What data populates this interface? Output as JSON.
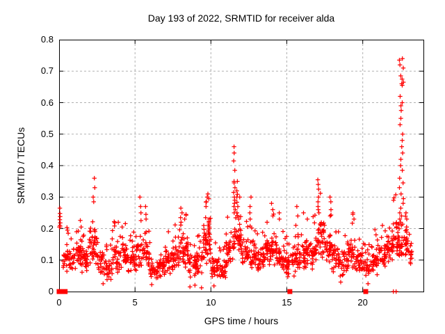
{
  "chart_data": {
    "type": "scatter",
    "title": "Day 193 of 2022, SRMTID for receiver alda",
    "xlabel": "GPS time / hours",
    "ylabel": "SRMTID / TECUs",
    "xlim": [
      0,
      24
    ],
    "ylim": [
      0,
      0.8
    ],
    "xticks": [
      0,
      5,
      10,
      15,
      20
    ],
    "xtick_labels": [
      "0",
      "5",
      "10",
      "15",
      "20"
    ],
    "yticks": [
      0,
      0.1,
      0.2,
      0.3,
      0.4,
      0.5,
      0.6,
      0.7,
      0.8
    ],
    "ytick_labels": [
      "0",
      "0.1",
      "0.2",
      "0.3",
      "0.4",
      "0.5",
      "0.6",
      "0.7",
      "0.8"
    ],
    "grid": true,
    "grid_style": "dashed",
    "grid_color": "#b0b0b0",
    "legend": "none",
    "marker": "plus",
    "marker_color": "#ff0000",
    "gap_marker": "filled-square",
    "seed": 20220193,
    "band_profile": [
      [
        0.25,
        0.5,
        14,
        0.06,
        0.13
      ],
      [
        0.5,
        1.0,
        30,
        0.05,
        0.16
      ],
      [
        1.0,
        1.5,
        32,
        0.06,
        0.18
      ],
      [
        1.5,
        2.0,
        30,
        0.05,
        0.15
      ],
      [
        2.0,
        2.5,
        36,
        0.07,
        0.23
      ],
      [
        2.5,
        3.0,
        30,
        0.05,
        0.14
      ],
      [
        3.0,
        3.5,
        28,
        0.03,
        0.11
      ],
      [
        3.5,
        4.0,
        32,
        0.05,
        0.17
      ],
      [
        4.0,
        4.5,
        32,
        0.06,
        0.18
      ],
      [
        4.5,
        5.0,
        30,
        0.05,
        0.15
      ],
      [
        5.0,
        5.5,
        30,
        0.06,
        0.19
      ],
      [
        5.5,
        6.0,
        30,
        0.05,
        0.17
      ],
      [
        6.0,
        6.5,
        27,
        0.03,
        0.1
      ],
      [
        6.5,
        7.0,
        28,
        0.04,
        0.12
      ],
      [
        7.0,
        7.5,
        30,
        0.05,
        0.15
      ],
      [
        7.5,
        8.0,
        32,
        0.06,
        0.17
      ],
      [
        8.0,
        8.5,
        34,
        0.07,
        0.2
      ],
      [
        8.5,
        9.0,
        30,
        0.04,
        0.13
      ],
      [
        9.0,
        9.5,
        30,
        0.05,
        0.14
      ],
      [
        9.5,
        10.0,
        40,
        0.08,
        0.23
      ],
      [
        10.0,
        10.5,
        30,
        0.04,
        0.12
      ],
      [
        10.5,
        11.0,
        28,
        0.03,
        0.11
      ],
      [
        11.0,
        11.5,
        34,
        0.07,
        0.2
      ],
      [
        11.5,
        12.0,
        40,
        0.1,
        0.28
      ],
      [
        12.0,
        12.5,
        32,
        0.06,
        0.18
      ],
      [
        12.5,
        13.0,
        32,
        0.06,
        0.17
      ],
      [
        13.0,
        13.5,
        30,
        0.05,
        0.15
      ],
      [
        13.5,
        14.0,
        32,
        0.07,
        0.19
      ],
      [
        14.0,
        14.5,
        34,
        0.07,
        0.2
      ],
      [
        14.5,
        15.0,
        30,
        0.05,
        0.15
      ],
      [
        15.0,
        15.5,
        28,
        0.04,
        0.13
      ],
      [
        15.5,
        16.0,
        32,
        0.06,
        0.17
      ],
      [
        16.0,
        16.5,
        32,
        0.06,
        0.18
      ],
      [
        16.5,
        17.0,
        34,
        0.07,
        0.19
      ],
      [
        17.0,
        17.5,
        36,
        0.09,
        0.25
      ],
      [
        17.5,
        18.0,
        32,
        0.06,
        0.2
      ],
      [
        18.0,
        18.5,
        30,
        0.05,
        0.15
      ],
      [
        18.5,
        19.0,
        30,
        0.04,
        0.14
      ],
      [
        19.0,
        19.5,
        32,
        0.06,
        0.18
      ],
      [
        19.5,
        20.0,
        30,
        0.05,
        0.16
      ],
      [
        20.0,
        20.5,
        28,
        0.04,
        0.13
      ],
      [
        20.5,
        21.0,
        30,
        0.05,
        0.16
      ],
      [
        21.0,
        21.5,
        32,
        0.07,
        0.17
      ],
      [
        21.5,
        22.0,
        34,
        0.08,
        0.19
      ],
      [
        22.0,
        22.5,
        36,
        0.1,
        0.24
      ],
      [
        22.5,
        23.0,
        34,
        0.09,
        0.21
      ],
      [
        23.0,
        23.25,
        14,
        0.08,
        0.16
      ]
    ],
    "spikes": [
      {
        "x": 2.3,
        "ys": [
          0.36,
          0.33,
          0.3,
          0.285
        ]
      },
      {
        "x": 5.35,
        "ys": [
          0.3,
          0.27,
          0.25
        ]
      },
      {
        "x": 5.72,
        "ys": [
          0.27,
          0.245,
          0.23
        ]
      },
      {
        "x": 8.05,
        "ys": [
          0.265,
          0.25,
          0.235,
          0.22
        ]
      },
      {
        "x": 8.32,
        "ys": [
          0.245,
          0.23
        ]
      },
      {
        "x": 9.72,
        "ys": [
          0.3,
          0.285,
          0.27
        ]
      },
      {
        "x": 9.85,
        "ys": [
          0.295,
          0.23,
          0.22,
          0.215,
          0.21,
          0.205,
          0.2,
          0.195,
          0.19,
          0.185
        ]
      },
      {
        "x": 11.55,
        "ys": [
          0.46,
          0.44,
          0.415,
          0.385,
          0.35,
          0.345,
          0.33,
          0.315,
          0.3,
          0.29,
          0.28,
          0.27,
          0.26,
          0.25
        ]
      },
      {
        "x": 11.75,
        "ys": [
          0.35,
          0.32,
          0.3,
          0.27,
          0.25
        ]
      },
      {
        "x": 12.6,
        "ys": [
          0.3,
          0.27,
          0.25,
          0.23
        ]
      },
      {
        "x": 14.05,
        "ys": [
          0.28,
          0.26,
          0.24
        ]
      },
      {
        "x": 14.45,
        "ys": [
          0.25,
          0.23
        ]
      },
      {
        "x": 15.7,
        "ys": [
          0.27,
          0.24
        ]
      },
      {
        "x": 17.1,
        "ys": [
          0.355,
          0.34,
          0.325,
          0.3,
          0.285,
          0.27,
          0.26,
          0.25
        ]
      },
      {
        "x": 17.85,
        "ys": [
          0.3,
          0.285,
          0.26,
          0.24
        ]
      },
      {
        "x": 19.4,
        "ys": [
          0.25,
          0.23
        ]
      },
      {
        "x": 22.55,
        "w": 0.28,
        "ys": [
          0.74,
          0.735,
          0.72,
          0.71,
          0.685,
          0.675,
          0.665,
          0.66,
          0.655,
          0.62,
          0.6,
          0.59,
          0.575,
          0.55,
          0.53,
          0.5,
          0.48,
          0.46,
          0.44,
          0.42,
          0.4,
          0.385,
          0.36,
          0.345,
          0.33,
          0.31,
          0.295,
          0.28,
          0.265,
          0.25,
          0.24,
          0.23,
          0.22,
          0.21
        ]
      }
    ],
    "outliers": [
      [
        0.05,
        0.265
      ],
      [
        0.06,
        0.248
      ],
      [
        0.07,
        0.238
      ],
      [
        0.05,
        0.228
      ],
      [
        0.08,
        0.218
      ],
      [
        0.06,
        0.21
      ],
      [
        0.07,
        0.205
      ],
      [
        0.02,
        0.205
      ],
      [
        0.55,
        0.195
      ],
      [
        0.6,
        0.185
      ],
      [
        1.15,
        0.19
      ],
      [
        1.45,
        0.205
      ],
      [
        1.5,
        0.16
      ],
      [
        2.9,
        0.025
      ],
      [
        6.1,
        0.022
      ],
      [
        8.62,
        0.015
      ],
      [
        8.95,
        0.02
      ],
      [
        9.38,
        0.012
      ],
      [
        10.2,
        0.018
      ],
      [
        18.55,
        0.03
      ],
      [
        20.35,
        0.025
      ],
      [
        3.9,
        0.22
      ],
      [
        4.15,
        0.205
      ],
      [
        7.2,
        0.19
      ],
      [
        13.7,
        0.22
      ],
      [
        16.1,
        0.25
      ],
      [
        16.35,
        0.23
      ],
      [
        19.35,
        0.245
      ],
      [
        21.3,
        0.21
      ],
      [
        22.85,
        0.25
      ],
      [
        22.9,
        0.23
      ],
      [
        9.65,
        0.235
      ],
      [
        9.8,
        0.31
      ],
      [
        11.9,
        0.3
      ]
    ],
    "zero_squares": [
      0,
      0.2,
      0.4,
      15.2,
      20.2
    ],
    "zero_pluses": [
      22.02,
      22.2
    ]
  }
}
